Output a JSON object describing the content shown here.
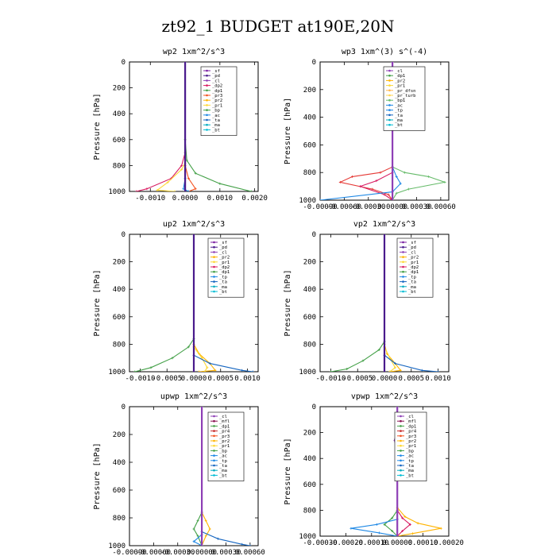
{
  "figure_title": "zt92_1  BUDGET at190E,20N",
  "colors": {
    "sf": "#7a1fa2",
    "pd": "#4a1a8c",
    "cl": "#8e3fb6",
    "dp2": "#d81b60",
    "dp1": "#43a047",
    "pr3": "#f4511e",
    "pr2": "#ffb300",
    "pr1": "#fdd835",
    "bp": "#43a047",
    "ac": "#1e88e5",
    "tp": "#1e88e5",
    "ta": "#1565c0",
    "ma": "#00acc1",
    "bt": "#00bcd4",
    "mfl": "#880e4f",
    "pr4": "#c62828",
    "pr_dfsn": "#ffb74d",
    "pr_turb": "#ffd54f",
    "bp1": "#66bb6a",
    "dp": "#e53935"
  },
  "chart_data": [
    {
      "type": "line",
      "title": "wp2  1xm^2/s^3",
      "ylabel": "Pressure [hPa]",
      "xlim": [
        -0.0016,
        0.0021
      ],
      "ylim": [
        1000,
        0
      ],
      "xticks": [
        -0.001,
        0.0,
        0.001,
        0.002
      ],
      "xtick_labels": [
        "-0.0010",
        "0.0000",
        "0.0010",
        "0.0020"
      ],
      "yticks": [
        0,
        200,
        400,
        600,
        800,
        1000
      ],
      "legend": [
        "_sf",
        "_pd",
        "_cl",
        "_dp2",
        "_dp1",
        "_pr3",
        "_pr2",
        "_pr1",
        "_bp",
        "_ac",
        "_ta",
        "_ma",
        "_bt"
      ],
      "series": [
        {
          "name": "_bp",
          "color_key": "bp",
          "points": [
            [
              0,
              0
            ],
            [
              0,
              600
            ],
            [
              5e-05,
              760
            ],
            [
              0.0003,
              860
            ],
            [
              0.001,
              940
            ],
            [
              0.0019,
              1000
            ]
          ]
        },
        {
          "name": "_dp1",
          "color_key": "dp2",
          "points": [
            [
              0,
              0
            ],
            [
              0,
              700
            ],
            [
              -0.0001,
              800
            ],
            [
              -0.0004,
              900
            ],
            [
              -0.0011,
              980
            ],
            [
              -0.0014,
              1000
            ]
          ]
        },
        {
          "name": "_pr1",
          "color_key": "pr1",
          "points": [
            [
              0,
              0
            ],
            [
              0,
              780
            ],
            [
              -0.0001,
              830
            ],
            [
              -0.0005,
              930
            ],
            [
              -0.0008,
              990
            ],
            [
              -0.0003,
              1000
            ]
          ]
        },
        {
          "name": "_pr3",
          "color_key": "pr3",
          "points": [
            [
              0,
              0
            ],
            [
              0,
              800
            ],
            [
              0.0001,
              900
            ],
            [
              0.0003,
              980
            ],
            [
              0.0001,
              1000
            ]
          ]
        },
        {
          "name": "_ac",
          "color_key": "ac",
          "points": [
            [
              0,
              0
            ],
            [
              0,
              900
            ],
            [
              -5e-05,
              980
            ],
            [
              0.0001,
              1000
            ]
          ]
        },
        {
          "name": "_pd",
          "color_key": "pd",
          "points": [
            [
              0,
              0
            ],
            [
              0,
              1000
            ]
          ]
        }
      ]
    },
    {
      "type": "line",
      "title": "wp3  1xm^(3) s^(-4)",
      "ylabel": "Pressure [hPa]",
      "xlim": [
        -0.0009,
        0.0007
      ],
      "ylim": [
        1000,
        0
      ],
      "xticks": [
        -0.0009,
        -0.0006,
        -0.0003,
        0.0,
        0.0003,
        0.0006
      ],
      "xtick_labels": [
        "-0.00090",
        "-0.00060",
        "-0.00030",
        "0.00000",
        "0.00030",
        "0.00060"
      ],
      "yticks": [
        0,
        200,
        400,
        600,
        800,
        1000
      ],
      "legend": [
        "_cl",
        "_dp1",
        "_pr2",
        "_pr1",
        "_pr_dfsn",
        "_pr_turb",
        "_bp1",
        "_ac",
        "_tp",
        "_ta",
        "_ma",
        "_bt"
      ],
      "series": [
        {
          "name": "_bp1",
          "color_key": "bp1",
          "points": [
            [
              0,
              0
            ],
            [
              0,
              760
            ],
            [
              0.00015,
              800
            ],
            [
              0.00045,
              830
            ],
            [
              0.00065,
              870
            ],
            [
              0.0002,
              920
            ],
            [
              5e-05,
              950
            ],
            [
              0,
              1000
            ]
          ]
        },
        {
          "name": "_dp1",
          "color_key": "dp",
          "points": [
            [
              0,
              0
            ],
            [
              0,
              760
            ],
            [
              -0.00015,
              800
            ],
            [
              -0.0005,
              830
            ],
            [
              -0.00065,
              870
            ],
            [
              -0.00025,
              920
            ],
            [
              -5e-05,
              960
            ],
            [
              0,
              1000
            ]
          ]
        },
        {
          "name": "_pr1",
          "color_key": "dp2",
          "points": [
            [
              0,
              0
            ],
            [
              0,
              800
            ],
            [
              -0.0002,
              860
            ],
            [
              -0.0004,
              900
            ],
            [
              -0.0001,
              960
            ],
            [
              0,
              1000
            ]
          ]
        },
        {
          "name": "_ac",
          "color_key": "ac",
          "points": [
            [
              0,
              0
            ],
            [
              0,
              760
            ],
            [
              5e-05,
              830
            ],
            [
              0.0001,
              880
            ],
            [
              0,
              940
            ],
            [
              -0.0009,
              1000
            ]
          ]
        },
        {
          "name": "_cl",
          "color_key": "cl",
          "points": [
            [
              0,
              0
            ],
            [
              0,
              1000
            ]
          ]
        }
      ]
    },
    {
      "type": "line",
      "title": "up2  1xm^2/s^3",
      "ylabel": "Pressure [hPa]",
      "xlim": [
        -0.0012,
        0.0012
      ],
      "ylim": [
        1000,
        0
      ],
      "xticks": [
        -0.001,
        -0.0005,
        0.0,
        0.0005,
        0.001
      ],
      "xtick_labels": [
        "-0.0010",
        "-0.0005",
        "0.0000",
        "0.0005",
        "0.0010"
      ],
      "yticks": [
        0,
        200,
        400,
        600,
        800,
        1000
      ],
      "legend": [
        "_sf",
        "_pd",
        "_cl",
        "_pr2",
        "_pr1",
        "_dp2",
        "_dp1",
        "_tp",
        "_ta",
        "_ma",
        "_bt"
      ],
      "series": [
        {
          "name": "_dp1",
          "color_key": "dp1",
          "points": [
            [
              0,
              0
            ],
            [
              0,
              760
            ],
            [
              -0.0001,
              820
            ],
            [
              -0.0004,
              900
            ],
            [
              -0.0008,
              970
            ],
            [
              -0.0011,
              1000
            ]
          ]
        },
        {
          "name": "_pr2",
          "color_key": "pr2",
          "points": [
            [
              0,
              0
            ],
            [
              0,
              800
            ],
            [
              0.0001,
              870
            ],
            [
              0.0003,
              940
            ],
            [
              0.0004,
              990
            ],
            [
              0.0001,
              1000
            ]
          ]
        },
        {
          "name": "_pr1",
          "color_key": "pr1",
          "points": [
            [
              0,
              0
            ],
            [
              0,
              820
            ],
            [
              0.00015,
              900
            ],
            [
              0.00025,
              970
            ],
            [
              0.0002,
              1000
            ]
          ]
        },
        {
          "name": "_ta",
          "color_key": "ta",
          "points": [
            [
              0,
              0
            ],
            [
              0,
              880
            ],
            [
              0.0003,
              940
            ],
            [
              0.0009,
              990
            ],
            [
              0.0011,
              1000
            ]
          ]
        },
        {
          "name": "_pd",
          "color_key": "pd",
          "points": [
            [
              0,
              0
            ],
            [
              0,
              1000
            ]
          ]
        }
      ]
    },
    {
      "type": "line",
      "title": "vp2  1xm^2/s^3",
      "ylabel": "Pressure [hPa]",
      "xlim": [
        -0.0012,
        0.0012
      ],
      "ylim": [
        1000,
        0
      ],
      "xticks": [
        -0.001,
        -0.0005,
        0.0,
        0.0005,
        0.001
      ],
      "xtick_labels": [
        "-0.0010",
        "-0.0005",
        "0.0000",
        "0.0005",
        "0.0010"
      ],
      "yticks": [
        0,
        200,
        400,
        600,
        800,
        1000
      ],
      "legend": [
        "_sf",
        "_pd",
        "_cl",
        "_pr2",
        "_pr1",
        "_dp2",
        "_dp1",
        "_tp",
        "_ta",
        "_ma",
        "_bt"
      ],
      "series": [
        {
          "name": "_dp1",
          "color_key": "dp1",
          "points": [
            [
              0,
              0
            ],
            [
              0,
              780
            ],
            [
              -0.0001,
              840
            ],
            [
              -0.0004,
              920
            ],
            [
              -0.0007,
              980
            ],
            [
              -0.001,
              1000
            ]
          ]
        },
        {
          "name": "_pr2",
          "color_key": "pr2",
          "points": [
            [
              0,
              0
            ],
            [
              0,
              800
            ],
            [
              5e-05,
              870
            ],
            [
              0.0002,
              940
            ],
            [
              0.0003,
              990
            ],
            [
              0.0001,
              1000
            ]
          ]
        },
        {
          "name": "_pr1",
          "color_key": "pr1",
          "points": [
            [
              0,
              0
            ],
            [
              0,
              820
            ],
            [
              0.0001,
              900
            ],
            [
              0.0002,
              970
            ],
            [
              0.0001,
              1000
            ]
          ]
        },
        {
          "name": "_ta",
          "color_key": "ta",
          "points": [
            [
              0,
              0
            ],
            [
              0,
              880
            ],
            [
              0.0002,
              940
            ],
            [
              0.0007,
              990
            ],
            [
              0.001,
              1000
            ]
          ]
        },
        {
          "name": "_pd",
          "color_key": "pd",
          "points": [
            [
              0,
              0
            ],
            [
              0,
              1000
            ]
          ]
        }
      ]
    },
    {
      "type": "line",
      "title": "upwp  1xm^2/s^3",
      "ylabel": "Pressure [hPa]",
      "xlim": [
        -0.0009,
        0.0007
      ],
      "ylim": [
        1000,
        0
      ],
      "xticks": [
        -0.0009,
        -0.0006,
        -0.0003,
        0.0,
        0.0003,
        0.0006
      ],
      "xtick_labels": [
        "-0.00090",
        "-0.00060",
        "-0.00030",
        "0.00000",
        "0.00030",
        "0.00060"
      ],
      "yticks": [
        0,
        200,
        400,
        600,
        800,
        1000
      ],
      "legend": [
        "_cl",
        "_mfl",
        "_dp1",
        "_pr4",
        "_pr3",
        "_pr2",
        "_pr1",
        "_bp",
        "_ac",
        "_tp",
        "_ta",
        "_ma",
        "_bt"
      ],
      "series": [
        {
          "name": "_pr2",
          "color_key": "pr2",
          "points": [
            [
              0,
              0
            ],
            [
              0,
              760
            ],
            [
              5e-05,
              820
            ],
            [
              0.0001,
              880
            ],
            [
              5e-05,
              930
            ],
            [
              0,
              1000
            ]
          ]
        },
        {
          "name": "_bp",
          "color_key": "dp1",
          "points": [
            [
              0,
              0
            ],
            [
              0,
              760
            ],
            [
              -5e-05,
              820
            ],
            [
              -0.0001,
              880
            ],
            [
              -5e-05,
              930
            ],
            [
              0,
              1000
            ]
          ]
        },
        {
          "name": "_ta",
          "color_key": "ta",
          "points": [
            [
              0,
              0
            ],
            [
              0,
              900
            ],
            [
              0.0002,
              950
            ],
            [
              0.0005,
              990
            ],
            [
              0.0006,
              1000
            ]
          ]
        },
        {
          "name": "_ac",
          "color_key": "ac",
          "points": [
            [
              0,
              0
            ],
            [
              0,
              920
            ],
            [
              -0.0001,
              970
            ],
            [
              0,
              1000
            ]
          ]
        },
        {
          "name": "_cl",
          "color_key": "cl",
          "points": [
            [
              0,
              0
            ],
            [
              0,
              1000
            ]
          ]
        }
      ]
    },
    {
      "type": "line",
      "title": "vpwp  1xm^2/s^3",
      "ylabel": "Pressure [hPa]",
      "xlim": [
        -0.0003,
        0.0002
      ],
      "ylim": [
        1000,
        0
      ],
      "xticks": [
        -0.0003,
        -0.0002,
        -0.0001,
        0.0,
        0.0001,
        0.0002
      ],
      "xtick_labels": [
        "-0.00030",
        "-0.00020",
        "-0.00010",
        "0.00000",
        "0.00010",
        "0.00020"
      ],
      "yticks": [
        0,
        200,
        400,
        600,
        800,
        1000
      ],
      "legend": [
        "_cl",
        "_mfl",
        "_dp1",
        "_pr4",
        "_pr3",
        "_pr2",
        "_pr1",
        "_bp",
        "_ac",
        "_tp",
        "_ta",
        "_ma",
        "_bt"
      ],
      "series": [
        {
          "name": "_pr2",
          "color_key": "pr2",
          "points": [
            [
              0,
              0
            ],
            [
              0,
              780
            ],
            [
              3e-05,
              850
            ],
            [
              8e-05,
              900
            ],
            [
              0.00017,
              940
            ],
            [
              6e-05,
              980
            ],
            [
              0,
              1000
            ]
          ]
        },
        {
          "name": "_dp1",
          "color_key": "dp2",
          "points": [
            [
              0,
              0
            ],
            [
              0,
              800
            ],
            [
              2e-05,
              860
            ],
            [
              5e-05,
              910
            ],
            [
              2e-05,
              960
            ],
            [
              0,
              1000
            ]
          ]
        },
        {
          "name": "_bp",
          "color_key": "dp1",
          "points": [
            [
              0,
              0
            ],
            [
              0,
              800
            ],
            [
              -2e-05,
              860
            ],
            [
              -5e-05,
              910
            ],
            [
              -2e-05,
              960
            ],
            [
              0,
              1000
            ]
          ]
        },
        {
          "name": "_ta",
          "color_key": "ac",
          "points": [
            [
              0,
              0
            ],
            [
              0,
              870
            ],
            [
              -8e-05,
              910
            ],
            [
              -0.00018,
              940
            ],
            [
              -7e-05,
              975
            ],
            [
              0,
              1000
            ]
          ]
        },
        {
          "name": "_cl",
          "color_key": "cl",
          "points": [
            [
              0,
              0
            ],
            [
              0,
              200
            ],
            [
              -1e-05,
              260
            ],
            [
              0,
              320
            ],
            [
              0,
              1000
            ]
          ]
        }
      ]
    }
  ]
}
